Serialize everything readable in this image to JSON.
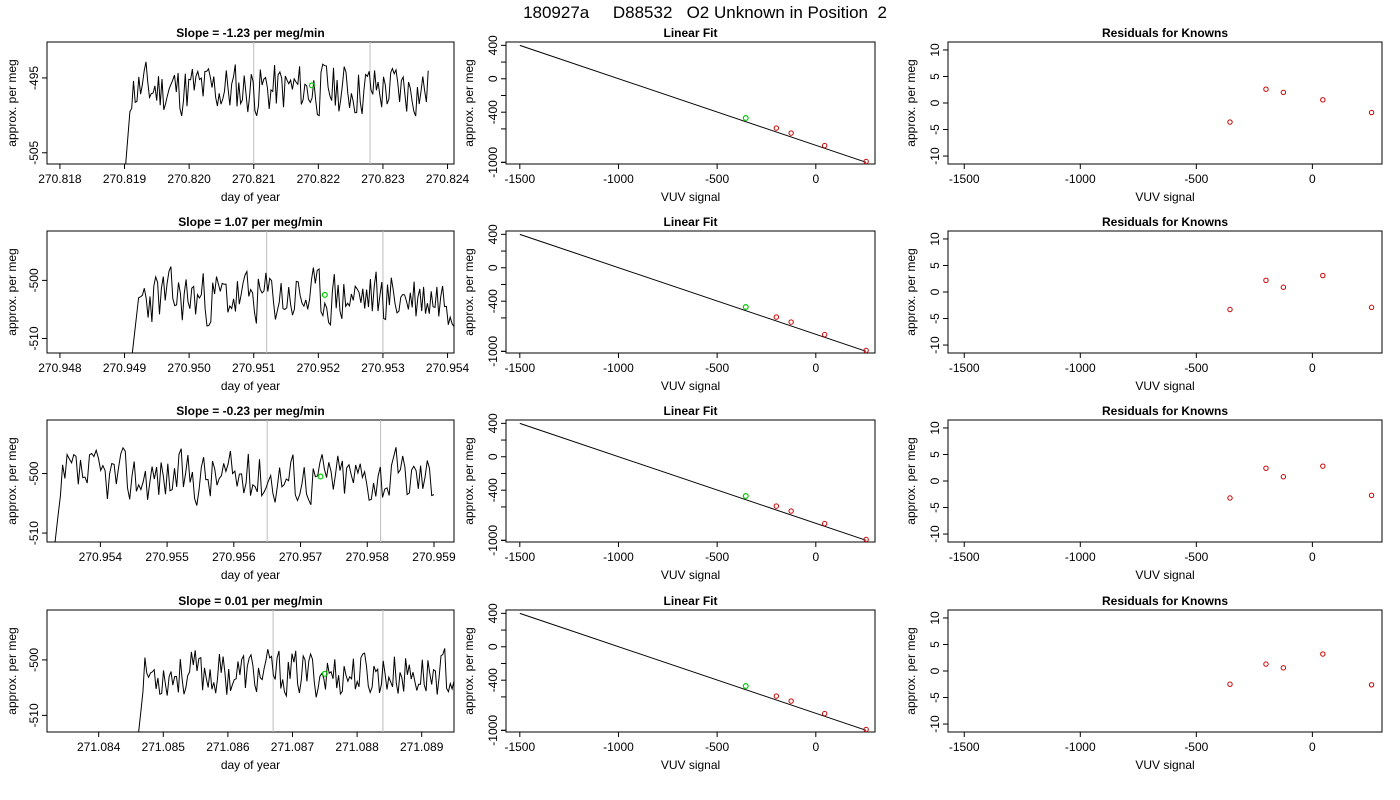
{
  "page_title": "180927a     D88532   O2 Unknown in Position  2",
  "colors": {
    "trace": "#000000",
    "green_marker": "#00cc00",
    "red_marker": "#cc0000",
    "vline": "#bdbdbd",
    "axis": "#000000"
  },
  "chart_data": [
    {
      "id": "r1-time",
      "type": "line",
      "title": "Slope =  -1.23  per meg/min",
      "xlabel": "day of year",
      "ylabel": "approx. per meg",
      "xticks": [
        "270.818",
        "270.819",
        "270.820",
        "270.821",
        "270.822",
        "270.823",
        "270.824"
      ],
      "yticks": [
        "-505",
        "-495"
      ],
      "xlim": [
        270.8178,
        270.8241
      ],
      "ylim": [
        -506.5,
        -490.2
      ],
      "start": 270.819,
      "end": 270.8237,
      "base": -496.5,
      "amp": 2.4,
      "seed": 11,
      "vlines": [
        270.821,
        270.8228
      ],
      "marker": {
        "x": 270.8219,
        "y": -496.0
      }
    },
    {
      "id": "r1-fit",
      "type": "scatter",
      "title": "Linear Fit",
      "xlabel": "VUV signal",
      "ylabel": "approx. per meg",
      "xticks": [
        "-1500",
        "-1000",
        "-500",
        "0"
      ],
      "yticks": [
        "-1000",
        "-600",
        "-200",
        "200"
      ],
      "yticks_major": [
        "400",
        "0",
        "-400",
        "-1000"
      ],
      "xlim": [
        -1570,
        300
      ],
      "ylim": [
        -1020,
        440
      ],
      "line": {
        "x0": -1500,
        "y0": 400,
        "x1": 255,
        "y1": -1000
      },
      "knowns": [
        {
          "x": -200,
          "y": -590
        },
        {
          "x": -125,
          "y": -650
        },
        {
          "x": 45,
          "y": -800
        },
        {
          "x": 255,
          "y": -990
        }
      ],
      "unknown": {
        "x": -355,
        "y": -470
      }
    },
    {
      "id": "r1-res",
      "type": "scatter",
      "title": "Residuals for Knowns",
      "xlabel": "VUV signal",
      "ylabel": "approx. per meg",
      "xticks": [
        "-1500",
        "-1000",
        "-500",
        "0"
      ],
      "yticks": [
        "-10",
        "-5",
        "0",
        "5",
        "10"
      ],
      "xlim": [
        -1570,
        300
      ],
      "ylim": [
        -11.5,
        11.5
      ],
      "points": [
        {
          "x": -355,
          "y": -3.6
        },
        {
          "x": -200,
          "y": 2.6
        },
        {
          "x": -125,
          "y": 2.0
        },
        {
          "x": 45,
          "y": 0.6
        },
        {
          "x": 255,
          "y": -1.8
        }
      ]
    },
    {
      "id": "r2-time",
      "type": "line",
      "title": "Slope =  1.07  per meg/min",
      "xlabel": "day of year",
      "ylabel": "approx. per meg",
      "xticks": [
        "270.948",
        "270.949",
        "270.950",
        "270.951",
        "270.952",
        "270.953",
        "270.954"
      ],
      "yticks": [
        "-510",
        "-500"
      ],
      "xlim": [
        270.9478,
        270.9541
      ],
      "ylim": [
        -512.5,
        -491.5
      ],
      "start": 270.9491,
      "end": 270.9541,
      "base": -503.0,
      "amp": 3.2,
      "seed": 23,
      "vlines": [
        270.9512,
        270.953
      ],
      "marker": {
        "x": 270.9521,
        "y": -502.5
      }
    },
    {
      "id": "r2-fit",
      "type": "scatter",
      "title": "Linear Fit",
      "xlabel": "VUV signal",
      "ylabel": "approx. per meg",
      "xticks": [
        "-1500",
        "-1000",
        "-500",
        "0"
      ],
      "yticks": [
        "-1000",
        "-600",
        "-200",
        "200"
      ],
      "yticks_major": [
        "400",
        "0",
        "-400",
        "-1000"
      ],
      "xlim": [
        -1570,
        300
      ],
      "ylim": [
        -1020,
        440
      ],
      "line": {
        "x0": -1500,
        "y0": 400,
        "x1": 255,
        "y1": -1000
      },
      "knowns": [
        {
          "x": -200,
          "y": -590
        },
        {
          "x": -125,
          "y": -650
        },
        {
          "x": 45,
          "y": -800
        },
        {
          "x": 255,
          "y": -990
        }
      ],
      "unknown": {
        "x": -355,
        "y": -470
      }
    },
    {
      "id": "r2-res",
      "type": "scatter",
      "title": "Residuals for Knowns",
      "xlabel": "VUV signal",
      "ylabel": "approx. per meg",
      "xticks": [
        "-1500",
        "-1000",
        "-500",
        "0"
      ],
      "yticks": [
        "-10",
        "-5",
        "0",
        "5",
        "10"
      ],
      "xlim": [
        -1570,
        300
      ],
      "ylim": [
        -11.5,
        11.5
      ],
      "points": [
        {
          "x": -355,
          "y": -3.3
        },
        {
          "x": -200,
          "y": 2.2
        },
        {
          "x": -125,
          "y": 0.9
        },
        {
          "x": 45,
          "y": 3.1
        },
        {
          "x": 255,
          "y": -2.9
        }
      ]
    },
    {
      "id": "r3-time",
      "type": "line",
      "title": "Slope =  -0.23  per meg/min",
      "xlabel": "day of year",
      "ylabel": "approx. per meg",
      "xticks": [
        "270.954",
        "270.955",
        "270.956",
        "270.957",
        "270.958",
        "270.959"
      ],
      "yticks": [
        "-510",
        "-500"
      ],
      "xlim": [
        270.9532,
        270.9593
      ],
      "ylim": [
        -511.5,
        -491.0
      ],
      "start": 270.9533,
      "end": 270.959,
      "base": -500.5,
      "amp": 3.0,
      "seed": 37,
      "vlines": [
        270.9565,
        270.9582
      ],
      "marker": {
        "x": 270.9573,
        "y": -500.5
      }
    },
    {
      "id": "r3-fit",
      "type": "scatter",
      "title": "Linear Fit",
      "xlabel": "VUV signal",
      "ylabel": "approx. per meg",
      "xticks": [
        "-1500",
        "-1000",
        "-500",
        "0"
      ],
      "yticks": [
        "-1000",
        "-600",
        "-200",
        "200"
      ],
      "yticks_major": [
        "400",
        "0",
        "-400",
        "-1000"
      ],
      "xlim": [
        -1570,
        300
      ],
      "ylim": [
        -1020,
        440
      ],
      "line": {
        "x0": -1500,
        "y0": 400,
        "x1": 255,
        "y1": -1000
      },
      "knowns": [
        {
          "x": -200,
          "y": -590
        },
        {
          "x": -125,
          "y": -650
        },
        {
          "x": 45,
          "y": -800
        },
        {
          "x": 255,
          "y": -990
        }
      ],
      "unknown": {
        "x": -355,
        "y": -470
      }
    },
    {
      "id": "r3-res",
      "type": "scatter",
      "title": "Residuals for Knowns",
      "xlabel": "VUV signal",
      "ylabel": "approx. per meg",
      "xticks": [
        "-1500",
        "-1000",
        "-500",
        "0"
      ],
      "yticks": [
        "-10",
        "-5",
        "0",
        "5",
        "10"
      ],
      "xlim": [
        -1570,
        300
      ],
      "ylim": [
        -11.5,
        11.5
      ],
      "points": [
        {
          "x": -355,
          "y": -3.2
        },
        {
          "x": -200,
          "y": 2.4
        },
        {
          "x": -125,
          "y": 0.8
        },
        {
          "x": 45,
          "y": 2.8
        },
        {
          "x": 255,
          "y": -2.7
        }
      ]
    },
    {
      "id": "r4-time",
      "type": "line",
      "title": "Slope =  0.01  per meg/min",
      "xlabel": "day of year",
      "ylabel": "approx. per meg",
      "xticks": [
        "271.084",
        "271.085",
        "271.086",
        "271.087",
        "271.088",
        "271.089"
      ],
      "yticks": [
        "-510",
        "-500"
      ],
      "xlim": [
        271.0832,
        271.0895
      ],
      "ylim": [
        -513.0,
        -491.0
      ],
      "start": 271.0846,
      "end": 271.0895,
      "base": -502.5,
      "amp": 2.8,
      "seed": 53,
      "vlines": [
        271.0867,
        271.0884
      ],
      "marker": {
        "x": 271.0875,
        "y": -502.5
      }
    },
    {
      "id": "r4-fit",
      "type": "scatter",
      "title": "Linear Fit",
      "xlabel": "VUV signal",
      "ylabel": "approx. per meg",
      "xticks": [
        "-1500",
        "-1000",
        "-500",
        "0"
      ],
      "yticks": [
        "-1000",
        "-600",
        "-200",
        "200"
      ],
      "yticks_major": [
        "400",
        "0",
        "-400",
        "-1000"
      ],
      "xlim": [
        -1570,
        300
      ],
      "ylim": [
        -1020,
        440
      ],
      "line": {
        "x0": -1500,
        "y0": 400,
        "x1": 255,
        "y1": -1000
      },
      "knowns": [
        {
          "x": -200,
          "y": -590
        },
        {
          "x": -125,
          "y": -650
        },
        {
          "x": 45,
          "y": -800
        },
        {
          "x": 255,
          "y": -990
        }
      ],
      "unknown": {
        "x": -355,
        "y": -470
      }
    },
    {
      "id": "r4-res",
      "type": "scatter",
      "title": "Residuals for Knowns",
      "xlabel": "VUV signal",
      "ylabel": "approx. per meg",
      "xticks": [
        "-1500",
        "-1000",
        "-500",
        "0"
      ],
      "yticks": [
        "-10",
        "-5",
        "0",
        "5",
        "10"
      ],
      "xlim": [
        -1570,
        300
      ],
      "ylim": [
        -11.5,
        11.5
      ],
      "points": [
        {
          "x": -355,
          "y": -2.5
        },
        {
          "x": -200,
          "y": 1.3
        },
        {
          "x": -125,
          "y": 0.6
        },
        {
          "x": 45,
          "y": 3.2
        },
        {
          "x": 255,
          "y": -2.6
        }
      ]
    }
  ]
}
